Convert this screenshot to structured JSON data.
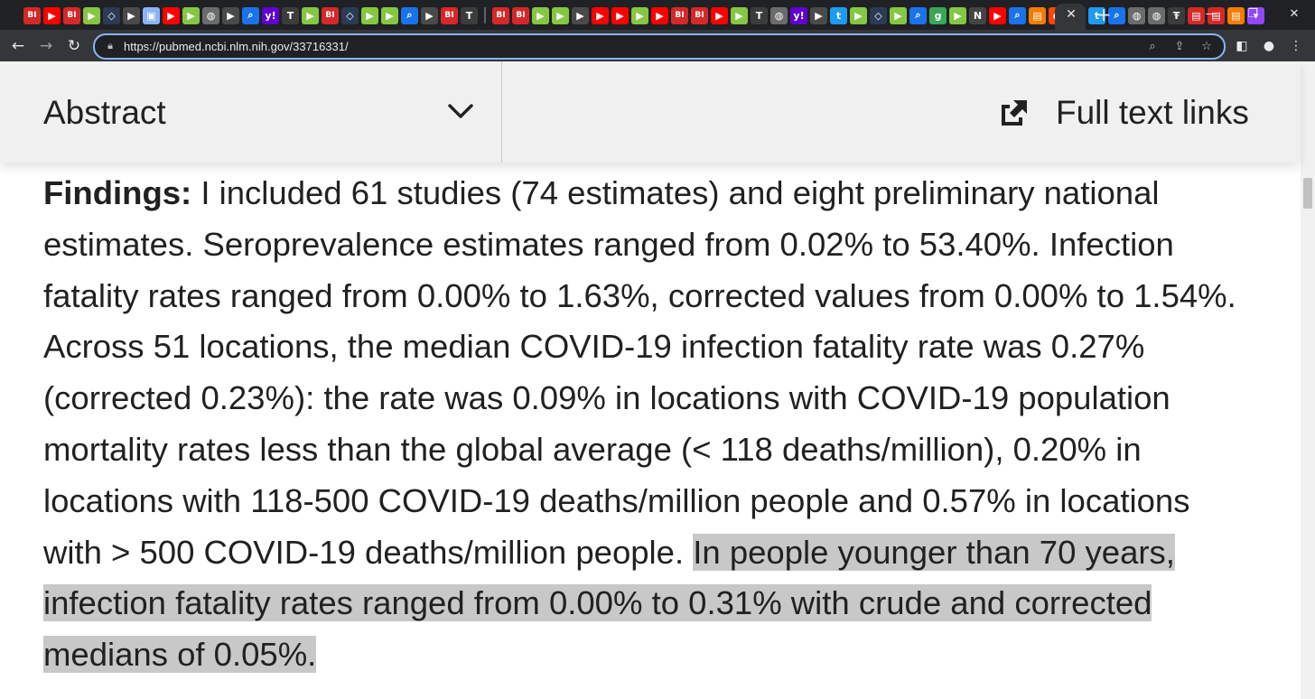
{
  "browser": {
    "tab_close_glyph": "✕",
    "new_tab_glyph": "+",
    "window_controls": {
      "minimize_glyph": "—",
      "maximize_glyph": "❐",
      "close_glyph": "✕",
      "tab_search_glyph": "⌄"
    },
    "url": "https://pubmed.ncbi.nlm.nih.gov/33716331/",
    "favicons": [
      {
        "icon": "business-insider-favicon",
        "letter": "BI",
        "bg": "#d62828"
      },
      {
        "icon": "youtube-favicon",
        "letter": "▶",
        "bg": "#ff0000"
      },
      {
        "icon": "business-insider-favicon",
        "letter": "BI",
        "bg": "#d62828"
      },
      {
        "icon": "rumble-favicon",
        "letter": "▶",
        "bg": "#85c742"
      },
      {
        "icon": "shield-favicon",
        "letter": "◇",
        "bg": "#2b3a55"
      },
      {
        "icon": "play-favicon",
        "letter": "▶",
        "bg": "#4a4a4a"
      },
      {
        "icon": "image-favicon",
        "letter": "▣",
        "bg": "#8ab4f8"
      },
      {
        "icon": "youtube-favicon",
        "letter": "▶",
        "bg": "#ff0000"
      },
      {
        "icon": "rumble-favicon",
        "letter": "▶",
        "bg": "#85c742"
      },
      {
        "icon": "globe-favicon",
        "letter": "◍",
        "bg": "#6b6b6b"
      },
      {
        "icon": "play-favicon",
        "letter": "▶",
        "bg": "#4a4a4a"
      },
      {
        "icon": "search-favicon",
        "letter": "⌕",
        "bg": "#1a73e8"
      },
      {
        "icon": "yahoo-favicon",
        "letter": "y!",
        "bg": "#6001d2"
      },
      {
        "icon": "nyt-favicon",
        "letter": "T",
        "bg": "#3c3c3c"
      },
      {
        "icon": "rumble-favicon",
        "letter": "▶",
        "bg": "#85c742"
      },
      {
        "icon": "business-insider-favicon",
        "letter": "BI",
        "bg": "#d62828"
      },
      {
        "icon": "shield-favicon",
        "letter": "◇",
        "bg": "#2b3a55"
      },
      {
        "icon": "rumble-favicon",
        "letter": "▶",
        "bg": "#85c742"
      },
      {
        "icon": "rumble-favicon",
        "letter": "▶",
        "bg": "#85c742"
      },
      {
        "icon": "search-favicon",
        "letter": "⌕",
        "bg": "#1a73e8"
      },
      {
        "icon": "play-favicon",
        "letter": "▶",
        "bg": "#4a4a4a"
      },
      {
        "icon": "business-insider-favicon",
        "letter": "BI",
        "bg": "#d62828"
      },
      {
        "icon": "nyt-favicon",
        "letter": "T",
        "bg": "#3c3c3c"
      },
      {
        "icon": "separator",
        "letter": "",
        "bg": "#5f6368"
      },
      {
        "icon": "business-insider-favicon",
        "letter": "BI",
        "bg": "#d62828"
      },
      {
        "icon": "business-insider-favicon",
        "letter": "BI",
        "bg": "#d62828"
      },
      {
        "icon": "rumble-favicon",
        "letter": "▶",
        "bg": "#85c742"
      },
      {
        "icon": "rumble-favicon",
        "letter": "▶",
        "bg": "#85c742"
      },
      {
        "icon": "play-favicon",
        "letter": "▶",
        "bg": "#4a4a4a"
      },
      {
        "icon": "youtube-favicon",
        "letter": "▶",
        "bg": "#ff0000"
      },
      {
        "icon": "youtube-favicon",
        "letter": "▶",
        "bg": "#ff0000"
      },
      {
        "icon": "rumble-favicon",
        "letter": "▶",
        "bg": "#85c742"
      },
      {
        "icon": "youtube-favicon",
        "letter": "▶",
        "bg": "#ff0000"
      },
      {
        "icon": "business-insider-favicon",
        "letter": "BI",
        "bg": "#d62828"
      },
      {
        "icon": "business-insider-favicon",
        "letter": "BI",
        "bg": "#d62828"
      },
      {
        "icon": "youtube-favicon",
        "letter": "▶",
        "bg": "#ff0000"
      },
      {
        "icon": "rumble-favicon",
        "letter": "▶",
        "bg": "#85c742"
      },
      {
        "icon": "nyt-favicon",
        "letter": "T",
        "bg": "#3c3c3c"
      },
      {
        "icon": "globe-favicon",
        "letter": "◍",
        "bg": "#6b6b6b"
      },
      {
        "icon": "yahoo-favicon",
        "letter": "y!",
        "bg": "#6001d2"
      },
      {
        "icon": "play-favicon",
        "letter": "▶",
        "bg": "#4a4a4a"
      },
      {
        "icon": "twitter-favicon",
        "letter": "t",
        "bg": "#1d9bf0"
      },
      {
        "icon": "rumble-favicon",
        "letter": "▶",
        "bg": "#85c742"
      },
      {
        "icon": "shield-favicon",
        "letter": "◇",
        "bg": "#2b3a55"
      },
      {
        "icon": "rumble-favicon",
        "letter": "▶",
        "bg": "#85c742"
      },
      {
        "icon": "search-favicon",
        "letter": "⌕",
        "bg": "#1a73e8"
      },
      {
        "icon": "g-favicon",
        "letter": "g",
        "bg": "#3aa757"
      },
      {
        "icon": "rumble-favicon",
        "letter": "▶",
        "bg": "#85c742"
      },
      {
        "icon": "news-favicon",
        "letter": "N",
        "bg": "#444444"
      },
      {
        "icon": "youtube-favicon",
        "letter": "▶",
        "bg": "#ff0000"
      },
      {
        "icon": "search-favicon",
        "letter": "⌕",
        "bg": "#1a73e8"
      },
      {
        "icon": "bookmark-favicon",
        "letter": "▤",
        "bg": "#f57c00"
      },
      {
        "icon": "reddit-favicon",
        "letter": "●",
        "bg": "#ff4500"
      },
      {
        "icon": "g-favicon",
        "letter": "g",
        "bg": "#3aa757"
      },
      {
        "icon": "twitter-favicon",
        "letter": "t",
        "bg": "#1d9bf0"
      },
      {
        "icon": "search-favicon",
        "letter": "⌕",
        "bg": "#1a73e8"
      },
      {
        "icon": "globe-favicon",
        "letter": "◍",
        "bg": "#6b6b6b"
      },
      {
        "icon": "globe-favicon",
        "letter": "◍",
        "bg": "#6b6b6b"
      },
      {
        "icon": "nyt-favicon",
        "letter": "T",
        "bg": "#3c3c3c"
      },
      {
        "icon": "bookmark-favicon",
        "letter": "▤",
        "bg": "#d62828"
      },
      {
        "icon": "bookmark-favicon",
        "letter": "▤",
        "bg": "#d62828"
      },
      {
        "icon": "bookmark-favicon",
        "letter": "▤",
        "bg": "#f57c00"
      },
      {
        "icon": "twitch-favicon",
        "letter": "▾",
        "bg": "#9146ff"
      }
    ]
  },
  "header": {
    "abstract_label": "Abstract",
    "full_text_label": "Full text links"
  },
  "abstract": {
    "findings_label": "Findings:",
    "text_plain": " I included 61 studies (74 estimates) and eight preliminary national estimates. Seroprevalence estimates ranged from 0.02% to 53.40%. Infection fatality rates ranged from 0.00% to 1.63%, corrected values from 0.00% to 1.54%. Across 51 locations, the median COVID-19 infection fatality rate was 0.27% (corrected 0.23%): the rate was 0.09% in locations with COVID-19 population mortality rates less than the global average (< 118 deaths/million), 0.20% in locations with 118-500 COVID-19 deaths/million people and 0.57% in locations with > 500 COVID-19 deaths/million people. ",
    "text_highlighted": "In people younger than 70 years, infection fatality rates ranged from 0.00% to 0.31% with crude and corrected medians of 0.05%."
  },
  "colors": {
    "chrome_dark": "#202124",
    "toolbar": "#35363a",
    "omnibox_focus": "#8ab4f8",
    "header_bg": "#f0f0f0",
    "text": "#212121",
    "highlight": "#c8c8c8"
  }
}
